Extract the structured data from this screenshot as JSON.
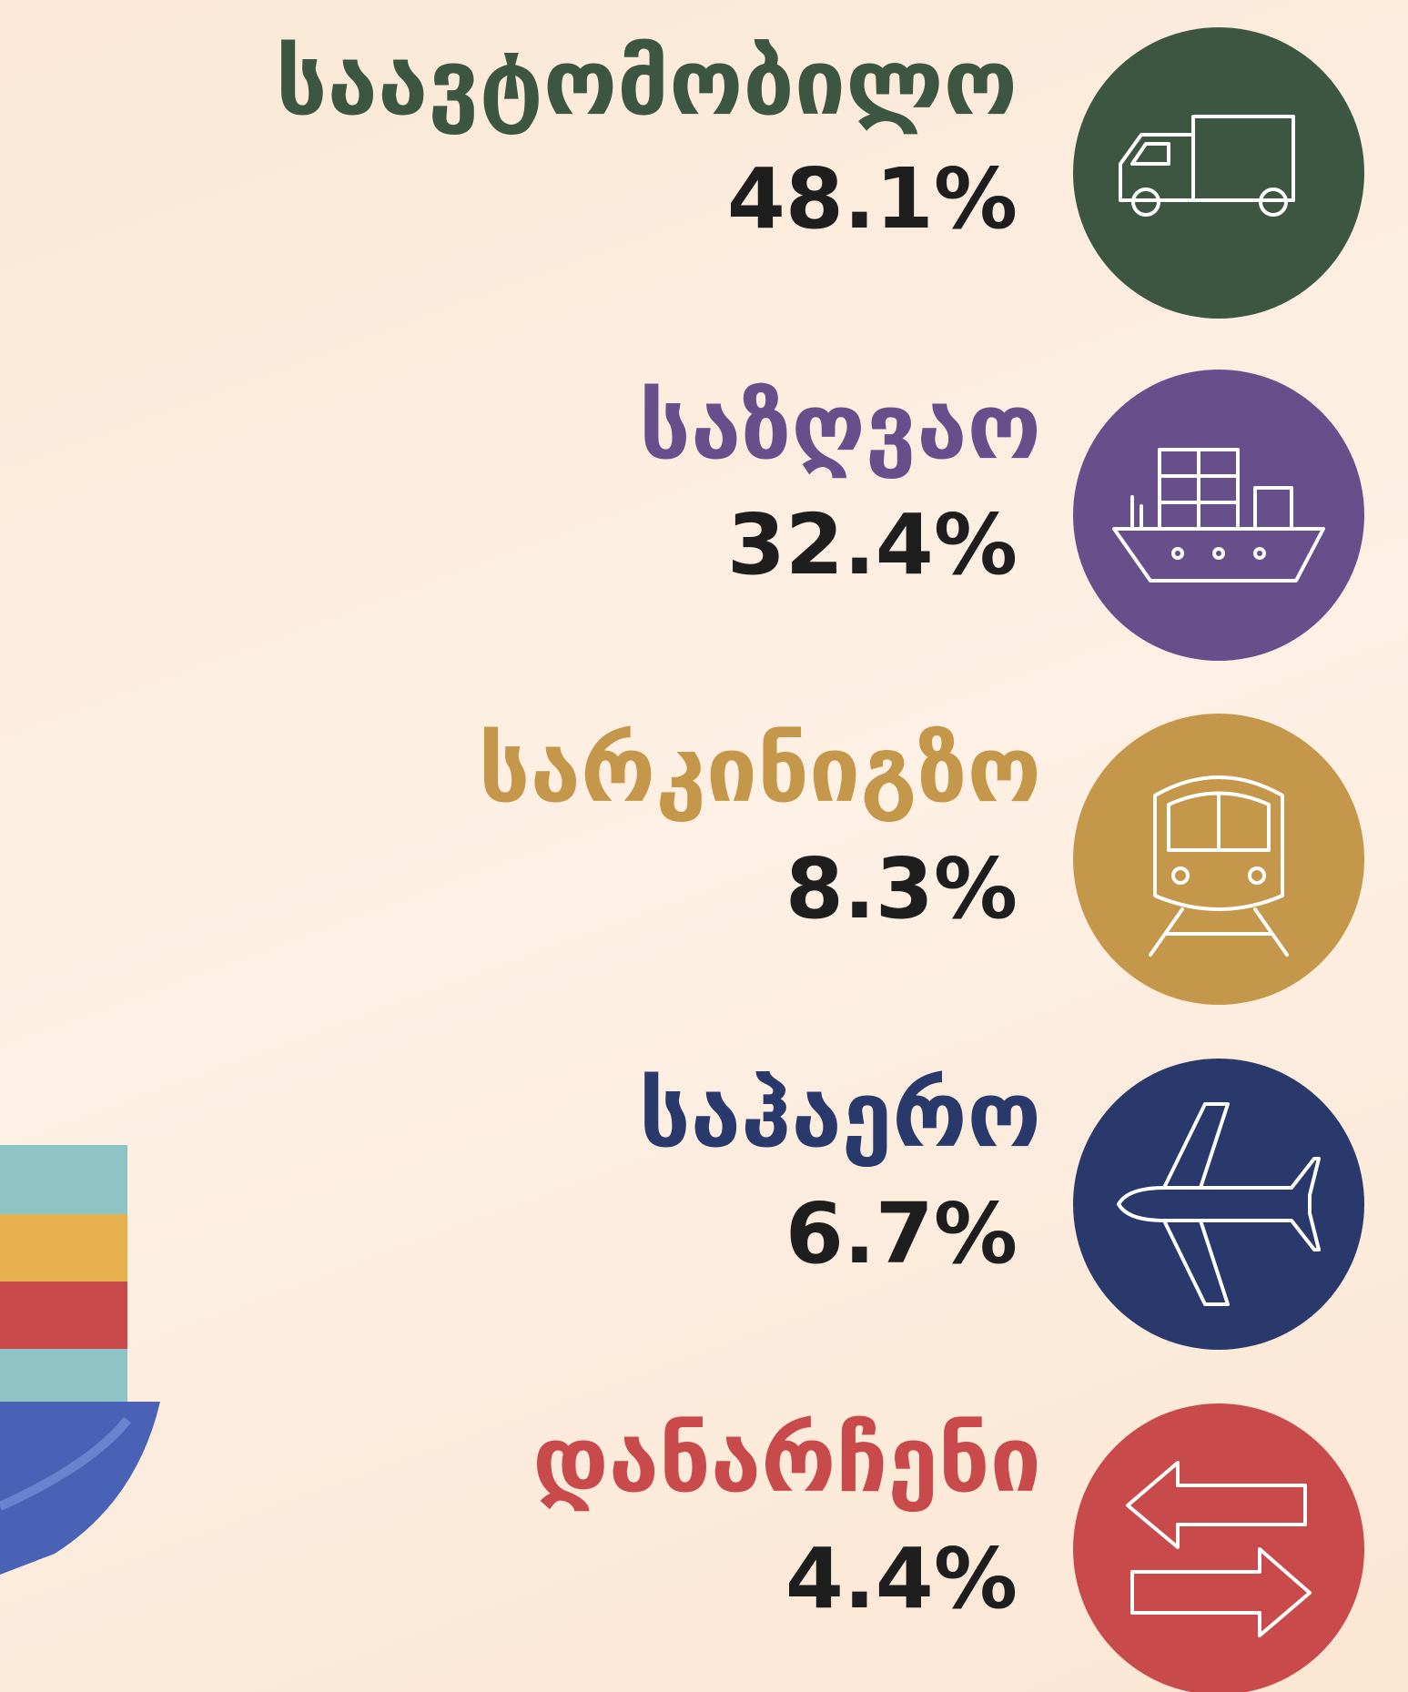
{
  "items": [
    {
      "label": "საავტომობილო",
      "value": "48.1%",
      "color": "#3d5641"
    },
    {
      "label": "საზღვაო",
      "value": "32.4%",
      "color": "#664f8a"
    },
    {
      "label": "სარკინიგზო",
      "value": "8.3%",
      "color": "#c4974a"
    },
    {
      "label": "საჰაერო",
      "value": "6.7%",
      "color": "#2a396b"
    },
    {
      "label": "დანარჩენი",
      "value": "4.4%",
      "color": "#c84a4a"
    }
  ]
}
